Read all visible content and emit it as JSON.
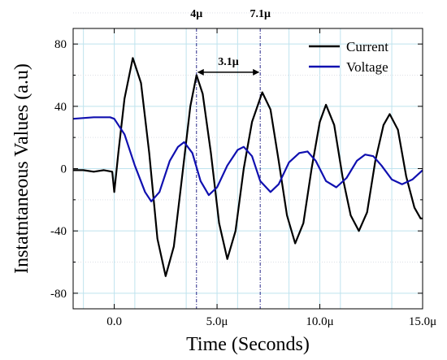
{
  "chart_data": {
    "type": "line",
    "xlabel": "Time (Seconds)",
    "ylabel": "Instatntaneous Values (a.u)",
    "xlim": [
      -2e-06,
      1.5e-05
    ],
    "ylim": [
      -90,
      90
    ],
    "x_ticks": [
      0,
      5e-06,
      1e-05,
      1.5e-05
    ],
    "x_tick_labels": [
      "0.0",
      "5.0μ",
      "10.0μ",
      "15.0μ"
    ],
    "y_ticks": [
      -80,
      -40,
      0,
      40,
      80
    ],
    "y_tick_labels": [
      "-80",
      "-40",
      "0",
      "40",
      "80"
    ],
    "grid": true,
    "legend_position": "top-right",
    "series": [
      {
        "name": "Current",
        "color": "#000000",
        "points": [
          [
            -2e-06,
            -1
          ],
          [
            -1.5e-06,
            -1
          ],
          [
            -1e-06,
            -2
          ],
          [
            -5e-07,
            -1
          ],
          [
            -1e-07,
            -2
          ],
          [
            0,
            -15
          ],
          [
            2e-07,
            10
          ],
          [
            5e-07,
            45
          ],
          [
            9e-07,
            71
          ],
          [
            1.3e-06,
            55
          ],
          [
            1.7e-06,
            10
          ],
          [
            2.1e-06,
            -45
          ],
          [
            2.5e-06,
            -69
          ],
          [
            2.9e-06,
            -50
          ],
          [
            3.3e-06,
            -5
          ],
          [
            3.7e-06,
            40
          ],
          [
            4e-06,
            60
          ],
          [
            4.3e-06,
            48
          ],
          [
            4.7e-06,
            10
          ],
          [
            5.1e-06,
            -35
          ],
          [
            5.5e-06,
            -58
          ],
          [
            5.9e-06,
            -40
          ],
          [
            6.3e-06,
            0
          ],
          [
            6.7e-06,
            30
          ],
          [
            7.2e-06,
            49
          ],
          [
            7.6e-06,
            38
          ],
          [
            8e-06,
            5
          ],
          [
            8.4e-06,
            -30
          ],
          [
            8.8e-06,
            -48
          ],
          [
            9.2e-06,
            -35
          ],
          [
            9.6e-06,
            0
          ],
          [
            1e-05,
            30
          ],
          [
            1.03e-05,
            41
          ],
          [
            1.07e-05,
            28
          ],
          [
            1.11e-05,
            -5
          ],
          [
            1.15e-05,
            -30
          ],
          [
            1.19e-05,
            -40
          ],
          [
            1.23e-05,
            -28
          ],
          [
            1.27e-05,
            5
          ],
          [
            1.31e-05,
            28
          ],
          [
            1.34e-05,
            35
          ],
          [
            1.38e-05,
            25
          ],
          [
            1.42e-05,
            -5
          ],
          [
            1.46e-05,
            -25
          ],
          [
            1.49e-05,
            -32
          ],
          [
            1.5e-05,
            -32
          ]
        ]
      },
      {
        "name": "Voltage",
        "color": "#1010b0",
        "points": [
          [
            -2e-06,
            32
          ],
          [
            -1e-06,
            33
          ],
          [
            -2e-07,
            33
          ],
          [
            0,
            32
          ],
          [
            5e-07,
            22
          ],
          [
            1e-06,
            2
          ],
          [
            1.5e-06,
            -15
          ],
          [
            1.8e-06,
            -21
          ],
          [
            2.2e-06,
            -15
          ],
          [
            2.7e-06,
            5
          ],
          [
            3.1e-06,
            14
          ],
          [
            3.4e-06,
            17
          ],
          [
            3.8e-06,
            10
          ],
          [
            4.2e-06,
            -8
          ],
          [
            4.6e-06,
            -17
          ],
          [
            5e-06,
            -12
          ],
          [
            5.5e-06,
            2
          ],
          [
            6e-06,
            12
          ],
          [
            6.3e-06,
            14
          ],
          [
            6.7e-06,
            8
          ],
          [
            7.1e-06,
            -8
          ],
          [
            7.6e-06,
            -15
          ],
          [
            8e-06,
            -10
          ],
          [
            8.5e-06,
            4
          ],
          [
            9e-06,
            10
          ],
          [
            9.4e-06,
            11
          ],
          [
            9.8e-06,
            5
          ],
          [
            1.03e-05,
            -8
          ],
          [
            1.08e-05,
            -12
          ],
          [
            1.13e-05,
            -6
          ],
          [
            1.18e-05,
            5
          ],
          [
            1.22e-05,
            9
          ],
          [
            1.26e-05,
            8
          ],
          [
            1.3e-05,
            2
          ],
          [
            1.35e-05,
            -7
          ],
          [
            1.4e-05,
            -10
          ],
          [
            1.45e-05,
            -7
          ],
          [
            1.5e-05,
            -1
          ]
        ]
      }
    ],
    "markers": [
      {
        "x": 4e-06,
        "label": "4μ"
      },
      {
        "x": 7.1e-06,
        "label": "7.1μ"
      }
    ],
    "interval": {
      "x1": 4e-06,
      "x2": 7.1e-06,
      "y": 65,
      "label": "3.1μ"
    }
  }
}
